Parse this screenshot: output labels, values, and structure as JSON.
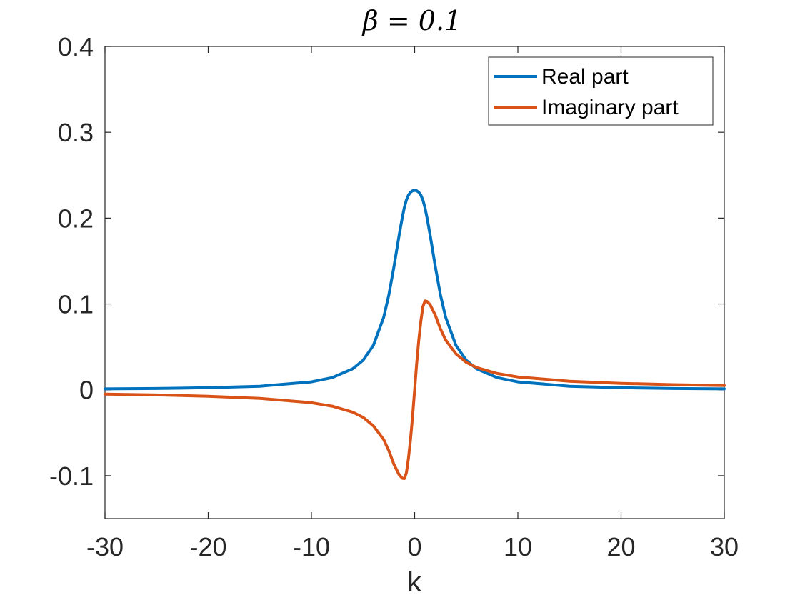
{
  "chart_data": {
    "type": "line",
    "title": "β = 0.1",
    "xlabel": "k",
    "ylabel": "",
    "xlim": [
      -30,
      30
    ],
    "ylim": [
      -0.15,
      0.4
    ],
    "xticks": [
      -30,
      -20,
      -10,
      0,
      10,
      20,
      30
    ],
    "xtick_labels": [
      "-30",
      "-20",
      "-10",
      "0",
      "10",
      "20",
      "30"
    ],
    "yticks": [
      -0.1,
      0,
      0.1,
      0.2,
      0.3,
      0.4
    ],
    "ytick_labels": [
      "-0.1",
      "0",
      "0.1",
      "0.2",
      "0.3",
      "0.4"
    ],
    "grid": false,
    "legend_position": "top-right",
    "x": [
      -30,
      -25,
      -20,
      -15,
      -10,
      -8,
      -6,
      -5,
      -4,
      -3,
      -2.5,
      -2,
      -1.5,
      -1.2,
      -1,
      -0.8,
      -0.6,
      -0.4,
      -0.2,
      0,
      0.2,
      0.4,
      0.6,
      0.8,
      1,
      1.2,
      1.5,
      2,
      2.5,
      3,
      4,
      5,
      6,
      8,
      10,
      15,
      20,
      25,
      30
    ],
    "series": [
      {
        "name": "Real part",
        "color": "#0072BD",
        "values": [
          0.0011,
          0.0015,
          0.0024,
          0.0042,
          0.0093,
          0.0142,
          0.0245,
          0.0344,
          0.0518,
          0.0846,
          0.1106,
          0.1437,
          0.1802,
          0.2006,
          0.212,
          0.2209,
          0.2268,
          0.2302,
          0.2318,
          0.2323,
          0.2318,
          0.2302,
          0.2268,
          0.2209,
          0.212,
          0.2006,
          0.1802,
          0.1437,
          0.1106,
          0.0846,
          0.0518,
          0.0344,
          0.0245,
          0.0142,
          0.0093,
          0.0042,
          0.0024,
          0.0015,
          0.0011
        ]
      },
      {
        "name": "Imaginary part",
        "color": "#D95319",
        "values": [
          -0.005,
          -0.006,
          -0.0075,
          -0.01,
          -0.015,
          -0.019,
          -0.026,
          -0.032,
          -0.042,
          -0.058,
          -0.071,
          -0.087,
          -0.099,
          -0.103,
          -0.1035,
          -0.097,
          -0.08,
          -0.058,
          -0.031,
          0.0,
          0.031,
          0.058,
          0.08,
          0.097,
          0.1035,
          0.103,
          0.099,
          0.087,
          0.071,
          0.058,
          0.042,
          0.032,
          0.026,
          0.019,
          0.015,
          0.01,
          0.0075,
          0.006,
          0.005
        ]
      }
    ]
  }
}
